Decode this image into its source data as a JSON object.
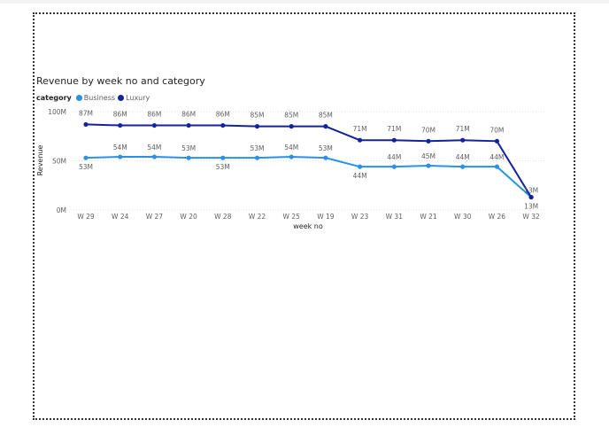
{
  "chart_data": {
    "type": "line",
    "title": "Revenue by week no and category",
    "xlabel": "week no",
    "ylabel": "Revenue",
    "legend_title": "category",
    "legend_position": "top-left",
    "grid": true,
    "categories": [
      "W 29",
      "W 24",
      "W 27",
      "W 20",
      "W 28",
      "W 22",
      "W 25",
      "W 19",
      "W 23",
      "W 31",
      "W 21",
      "W 30",
      "W 26",
      "W 32"
    ],
    "ylim": [
      0,
      100
    ],
    "yticks": [
      0,
      50,
      100
    ],
    "ytick_labels": [
      "0M",
      "50M",
      "100M"
    ],
    "series": [
      {
        "name": "Business",
        "color": "#2b90e8",
        "values": [
          53,
          54,
          54,
          53,
          53,
          53,
          54,
          53,
          44,
          44,
          45,
          44,
          44,
          13
        ],
        "labels": [
          "53M",
          "54M",
          "54M",
          "53M",
          "53M",
          "53M",
          "54M",
          "53M",
          "44M",
          "44M",
          "45M",
          "44M",
          "44M",
          "13M"
        ]
      },
      {
        "name": "Luxury",
        "color": "#12239e",
        "values": [
          87,
          86,
          86,
          86,
          86,
          85,
          85,
          85,
          71,
          71,
          70,
          71,
          70,
          13
        ],
        "labels": [
          "87M",
          "86M",
          "86M",
          "86M",
          "86M",
          "85M",
          "85M",
          "85M",
          "71M",
          "71M",
          "70M",
          "71M",
          "70M",
          "13M"
        ]
      }
    ]
  }
}
